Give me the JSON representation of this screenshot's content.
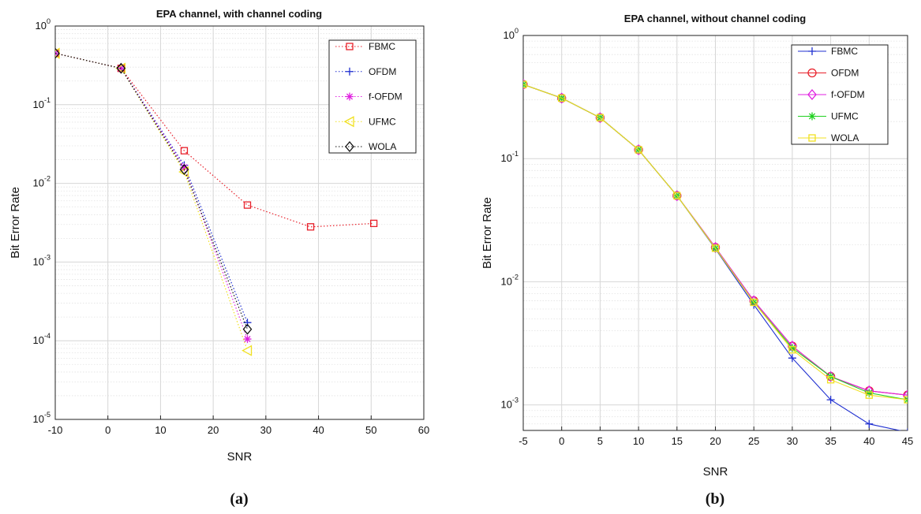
{
  "chart_data": [
    {
      "type": "line",
      "title": "EPA channel, with channel coding",
      "xlabel": "SNR",
      "ylabel": "Bit Error Rate",
      "caption": "(a)",
      "xlim": [
        -10,
        60
      ],
      "ylim": [
        1e-05,
        1
      ],
      "yscale": "log",
      "grid": true,
      "legend": "top-right",
      "xticks": [
        "-10",
        "0",
        "10",
        "20",
        "30",
        "40",
        "50",
        "60"
      ],
      "yticks": [
        {
          "base": "10",
          "exp": "0"
        },
        {
          "base": "10",
          "exp": "-1"
        },
        {
          "base": "10",
          "exp": "-2"
        },
        {
          "base": "10",
          "exp": "-3"
        },
        {
          "base": "10",
          "exp": "-4"
        },
        {
          "base": "10",
          "exp": "-5"
        }
      ],
      "series": [
        {
          "name": "FBMC",
          "color": "#e8202a",
          "marker": "square",
          "line": "dotted",
          "x": [
            -10,
            2.5,
            14.5,
            26.5,
            38.5,
            50.5
          ],
          "values": [
            0.45,
            0.29,
            0.026,
            0.0053,
            0.0028,
            0.0031
          ]
        },
        {
          "name": "OFDM",
          "color": "#1f2fd0",
          "marker": "plus",
          "line": "dotted",
          "x": [
            -10,
            2.5,
            14.5,
            26.5
          ],
          "values": [
            0.45,
            0.29,
            0.017,
            0.00017
          ]
        },
        {
          "name": "f-OFDM",
          "color": "#e020e0",
          "marker": "asterisk",
          "line": "dotted",
          "x": [
            -10,
            2.5,
            14.5,
            26.5
          ],
          "values": [
            0.45,
            0.29,
            0.016,
            0.000105
          ]
        },
        {
          "name": "UFMC",
          "color": "#f0e020",
          "marker": "triangle-left",
          "line": "dotted",
          "x": [
            -10,
            2.5,
            14.5,
            26.5
          ],
          "values": [
            0.45,
            0.29,
            0.014,
            7.5e-05
          ]
        },
        {
          "name": "WOLA",
          "color": "#111111",
          "marker": "diamond",
          "line": "dotted",
          "x": [
            -10,
            2.5,
            14.5,
            26.5
          ],
          "values": [
            0.45,
            0.29,
            0.015,
            0.00014
          ]
        }
      ]
    },
    {
      "type": "line",
      "title": "EPA channel, without channel coding",
      "xlabel": "SNR",
      "ylabel": "Bit Error Rate",
      "caption": "(b)",
      "xlim": [
        -5,
        45
      ],
      "ylim": [
        0.00062,
        1
      ],
      "yscale": "log",
      "grid": true,
      "legend": "top-right",
      "xticks": [
        "-5",
        "0",
        "5",
        "10",
        "15",
        "20",
        "25",
        "30",
        "35",
        "40",
        "45"
      ],
      "yticks": [
        {
          "base": "10",
          "exp": "0"
        },
        {
          "base": "10",
          "exp": "-1"
        },
        {
          "base": "10",
          "exp": "-2"
        },
        {
          "base": "10",
          "exp": "-3"
        }
      ],
      "series": [
        {
          "name": "FBMC",
          "color": "#1f2fd0",
          "marker": "plus",
          "line": "solid",
          "x": [
            -5,
            0,
            5,
            10,
            15,
            20,
            25,
            30,
            35,
            40,
            45
          ],
          "values": [
            0.4,
            0.31,
            0.215,
            0.118,
            0.05,
            0.0185,
            0.0065,
            0.0024,
            0.0011,
            0.0007,
            0.0006
          ]
        },
        {
          "name": "OFDM",
          "color": "#e8202a",
          "marker": "circle",
          "line": "solid",
          "x": [
            -5,
            0,
            5,
            10,
            15,
            20,
            25,
            30,
            35,
            40,
            45
          ],
          "values": [
            0.4,
            0.31,
            0.215,
            0.118,
            0.05,
            0.019,
            0.007,
            0.003,
            0.0017,
            0.0013,
            0.0012
          ]
        },
        {
          "name": "f-OFDM",
          "color": "#e020e0",
          "marker": "diamond",
          "line": "solid",
          "x": [
            -5,
            0,
            5,
            10,
            15,
            20,
            25,
            30,
            35,
            40,
            45
          ],
          "values": [
            0.4,
            0.31,
            0.215,
            0.118,
            0.05,
            0.019,
            0.007,
            0.003,
            0.0017,
            0.0013,
            0.0012
          ]
        },
        {
          "name": "UFMC",
          "color": "#20d020",
          "marker": "asterisk",
          "line": "solid",
          "x": [
            -5,
            0,
            5,
            10,
            15,
            20,
            25,
            30,
            35,
            40,
            45
          ],
          "values": [
            0.4,
            0.31,
            0.215,
            0.118,
            0.05,
            0.0187,
            0.0068,
            0.0029,
            0.0017,
            0.00125,
            0.0011
          ]
        },
        {
          "name": "WOLA",
          "color": "#f0e020",
          "marker": "square",
          "line": "solid",
          "x": [
            -5,
            0,
            5,
            10,
            15,
            20,
            25,
            30,
            35,
            40,
            45
          ],
          "values": [
            0.4,
            0.31,
            0.215,
            0.118,
            0.05,
            0.0187,
            0.0068,
            0.0028,
            0.0016,
            0.0012,
            0.0011
          ]
        }
      ]
    }
  ]
}
